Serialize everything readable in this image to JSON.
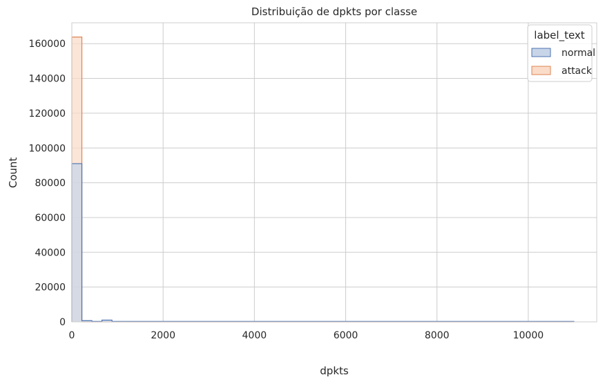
{
  "chart_data": {
    "type": "bar",
    "subtype": "histogram-step",
    "title": "Distribuição de dpkts por classe",
    "xlabel": "dpkts",
    "ylabel": "Count",
    "xlim": [
      0,
      11500
    ],
    "ylim": [
      0,
      172000
    ],
    "xticks": [
      0,
      2000,
      4000,
      6000,
      8000,
      10000
    ],
    "yticks": [
      0,
      20000,
      40000,
      60000,
      80000,
      100000,
      120000,
      140000,
      160000
    ],
    "grid": true,
    "legend": {
      "title": "label_text",
      "placement": "top-right"
    },
    "bin_width": 220,
    "bin_range": [
      0,
      11000
    ],
    "series": [
      {
        "name": "normal",
        "color": "#4c72b0",
        "fill": "#c8d5e9",
        "bins": [
          {
            "x0": 0,
            "x1": 220,
            "count": 91000
          },
          {
            "x0": 220,
            "x1": 440,
            "count": 700
          },
          {
            "x0": 440,
            "x1": 660,
            "count": 150
          },
          {
            "x0": 660,
            "x1": 880,
            "count": 1000
          },
          {
            "x0": 880,
            "x1": 1100,
            "count": 150
          },
          {
            "x0": 1100,
            "x1": 11000,
            "count": 20
          }
        ]
      },
      {
        "name": "attack",
        "color": "#dd8452",
        "fill": "#fadcc9",
        "bins": [
          {
            "x0": 0,
            "x1": 220,
            "count": 163800
          },
          {
            "x0": 220,
            "x1": 11000,
            "count": 0
          }
        ]
      }
    ]
  }
}
